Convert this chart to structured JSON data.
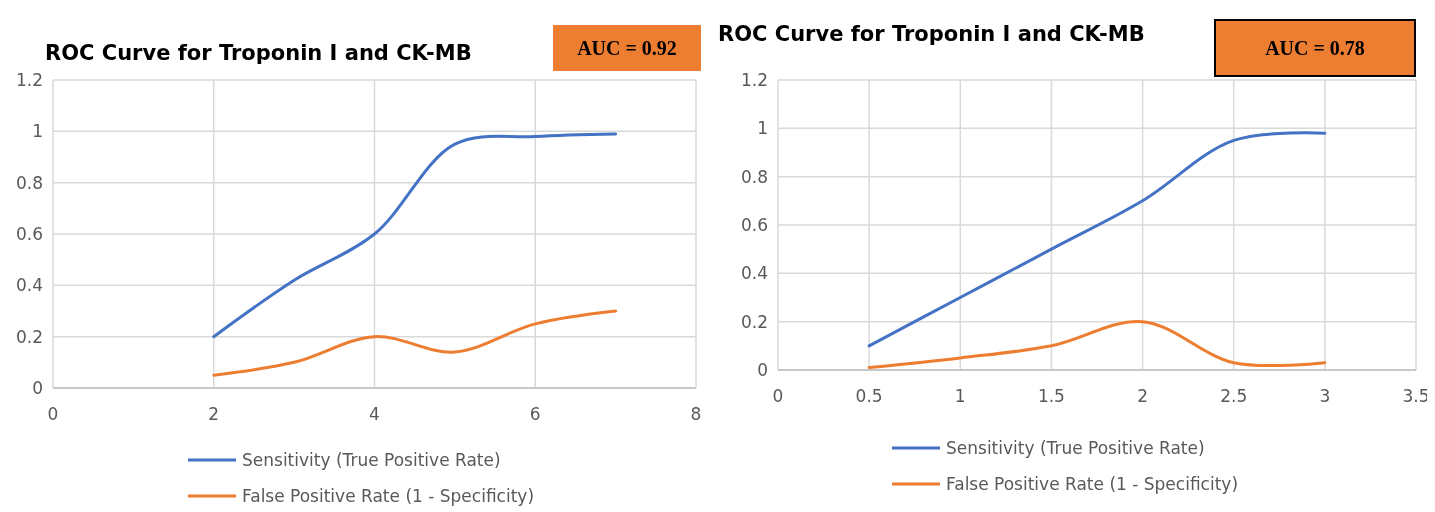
{
  "chart_data": [
    {
      "type": "line",
      "title": "ROC Curve for Troponin I and CK-MB",
      "annotations": [
        "AUC = 0.92"
      ],
      "x": [
        2,
        3,
        4,
        5,
        6,
        7
      ],
      "xlim": [
        0,
        8
      ],
      "xticks": [
        0,
        2,
        4,
        6,
        8
      ],
      "ylim": [
        0,
        1.2
      ],
      "yticks": [
        0,
        0.2,
        0.4,
        0.6,
        0.8,
        1,
        1.2
      ],
      "grid": true,
      "legend": "bottom",
      "marker": "none",
      "line_style": "solid",
      "series": [
        {
          "name": "Sensitivity (True Positive Rate)",
          "color": "#4472c4",
          "values": [
            0.2,
            0.42,
            0.6,
            0.95,
            0.98,
            0.99
          ]
        },
        {
          "name": "False Positive Rate (1 - Specificity)",
          "color": "#ed7d31",
          "values": [
            0.05,
            0.1,
            0.2,
            0.14,
            0.25,
            0.3
          ]
        }
      ]
    },
    {
      "type": "line",
      "title": "ROC Curve for Troponin I and CK-MB",
      "annotations": [
        "AUC = 0.78"
      ],
      "x": [
        0.5,
        1,
        1.5,
        2,
        2.5,
        3
      ],
      "xlim": [
        0,
        3.5
      ],
      "xticks": [
        0,
        0.5,
        1,
        1.5,
        2,
        2.5,
        3,
        3.5
      ],
      "ylim": [
        0,
        1.2
      ],
      "yticks": [
        0,
        0.2,
        0.4,
        0.6,
        0.8,
        1,
        1.2
      ],
      "grid": true,
      "legend": "bottom",
      "marker": "none",
      "line_style": "solid",
      "series": [
        {
          "name": "Sensitivity (True Positive Rate)",
          "color": "#4472c4",
          "values": [
            0.1,
            0.3,
            0.5,
            0.7,
            0.95,
            0.98
          ]
        },
        {
          "name": "False Positive Rate (1 - Specificity)",
          "color": "#ed7d31",
          "values": [
            0.01,
            0.05,
            0.1,
            0.2,
            0.03,
            0.03
          ]
        }
      ]
    }
  ]
}
